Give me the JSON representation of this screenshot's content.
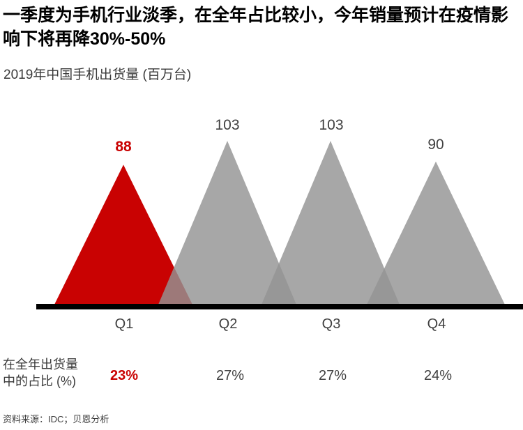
{
  "title": "一季度为手机行业淡季，在全年占比较小，今年销量预计在疫情影响下将再降30%-50%",
  "subtitle": "2019年中国手机出货量 (百万台)",
  "share_label": {
    "line1": "在全年出货量",
    "line2": "中的占比 (%)"
  },
  "source": "资料来源：IDC；贝恩分析",
  "colors": {
    "highlight_red": "#C90202",
    "triangle_gray": "#949494",
    "axis_black": "#000000",
    "label_dark": "#404040"
  },
  "chart_data": {
    "type": "bar",
    "shape": "triangle-peaks",
    "title": "2019年中国手机出货量 (百万台)",
    "categories": [
      "Q1",
      "Q2",
      "Q3",
      "Q4"
    ],
    "series": [
      {
        "name": "出货量 (百万台)",
        "values": [
          88,
          103,
          103,
          90
        ]
      },
      {
        "name": "在全年出货量中的占比 (%)",
        "values": [
          "23%",
          "27%",
          "27%",
          "24%"
        ]
      }
    ],
    "highlight_index": 0,
    "ylim": [
      0,
      110
    ],
    "grid": false,
    "legend": false
  }
}
